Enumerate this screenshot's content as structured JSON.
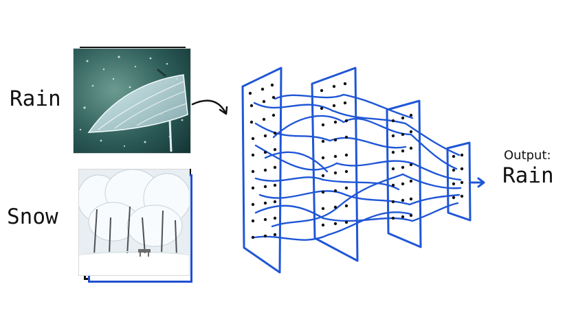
{
  "inputs": [
    {
      "label": "Rain"
    },
    {
      "label": "Snow"
    }
  ],
  "output": {
    "title": "Output:",
    "value": "Rain"
  },
  "colors": {
    "network_blue": "#1f56d6",
    "node_black": "#111111",
    "text_black": "#111111"
  },
  "icons": {
    "rain": "umbrella-in-rain-photo",
    "snow": "snowy-forest-photo",
    "arrow": "arrow-icon"
  }
}
